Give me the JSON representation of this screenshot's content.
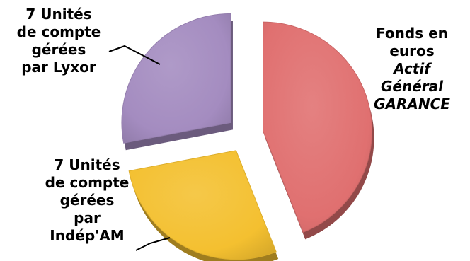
{
  "chart_data": {
    "type": "pie",
    "slices": [
      {
        "label_lines": [
          "Fonds en",
          "euros"
        ],
        "label_italic_lines": [
          "Actif",
          "Général",
          "GARANCE"
        ],
        "percent": 44,
        "color": "#e07070"
      },
      {
        "label_lines": [
          "7 Unités",
          "de compte",
          "gérées",
          "par",
          "Indép'AM"
        ],
        "label_italic_lines": [],
        "percent": 28,
        "color": "#f4c030"
      },
      {
        "label_lines": [
          "7 Unités",
          "de compte",
          "gérées",
          "par Lyxor"
        ],
        "label_italic_lines": [],
        "percent": 28,
        "color": "#a48cc0"
      }
    ]
  }
}
